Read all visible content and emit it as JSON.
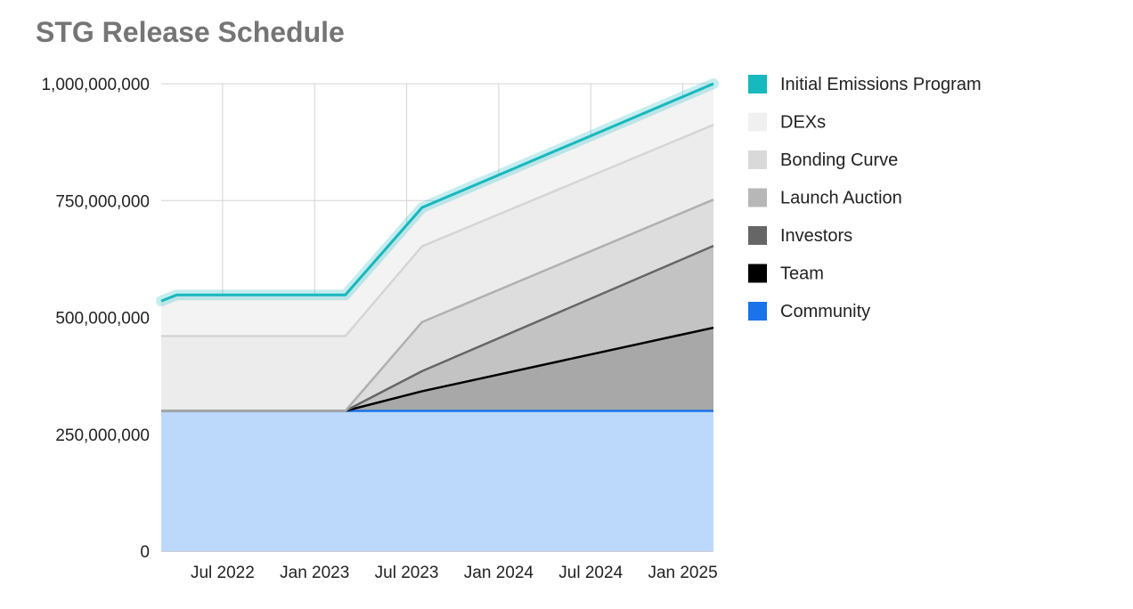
{
  "chart_data": {
    "type": "area",
    "title": "STG Release Schedule",
    "stacked": true,
    "x_start": "2022-03",
    "x_end": "2025-03",
    "xtick_labels": [
      "Jul 2022",
      "Jan 2023",
      "Jul 2023",
      "Jan 2024",
      "Jul 2024",
      "Jan 2025"
    ],
    "ytick_labels": [
      "0",
      "250,000,000",
      "500,000,000",
      "750,000,000",
      "1,000,000,000"
    ],
    "ylim": [
      0,
      1000000000
    ],
    "grid": true,
    "legend_position": "right",
    "x": [
      "2022-03",
      "2022-04",
      "2023-03",
      "2023-08",
      "2025-03"
    ],
    "series": [
      {
        "name": "Community",
        "color": "#1a73e8",
        "fill": "#bcd8fa",
        "cumulative": [
          300000000,
          300000000,
          300000000,
          300000000,
          300000000
        ]
      },
      {
        "name": "Team",
        "color": "#000000",
        "fill": "#a8a8a8",
        "cumulative": [
          300000000,
          300000000,
          300000000,
          342000000,
          478000000
        ]
      },
      {
        "name": "Investors",
        "color": "#666666",
        "fill": "#c3c3c3",
        "cumulative": [
          300000000,
          300000000,
          300000000,
          385000000,
          653000000
        ]
      },
      {
        "name": "Launch Auction",
        "color": "#b0b0b0",
        "fill": "#dddddd",
        "cumulative": [
          300000000,
          300000000,
          300000000,
          490000000,
          752000000
        ]
      },
      {
        "name": "Bonding Curve",
        "color": "#d5d5d5",
        "fill": "#ececec",
        "cumulative": [
          460000000,
          460000000,
          460000000,
          652000000,
          912000000
        ]
      },
      {
        "name": "DEXs",
        "color": "#efefef",
        "fill": "#f3f3f3",
        "cumulative": [
          535000000,
          548000000,
          548000000,
          735000000,
          1000000000
        ]
      },
      {
        "name": "Initial Emissions Program",
        "color": "#17b8be",
        "fill": "none",
        "cumulative": [
          535000000,
          548000000,
          548000000,
          735000000,
          1000000000
        ]
      }
    ],
    "legend_order": [
      "Initial Emissions Program",
      "DEXs",
      "Bonding Curve",
      "Launch Auction",
      "Investors",
      "Team",
      "Community"
    ],
    "legend_colors": {
      "Initial Emissions Program": "#17b8be",
      "DEXs": "#f0f0f0",
      "Bonding Curve": "#d9d9d9",
      "Launch Auction": "#b7b7b7",
      "Investors": "#666666",
      "Team": "#000000",
      "Community": "#1a73e8"
    }
  }
}
